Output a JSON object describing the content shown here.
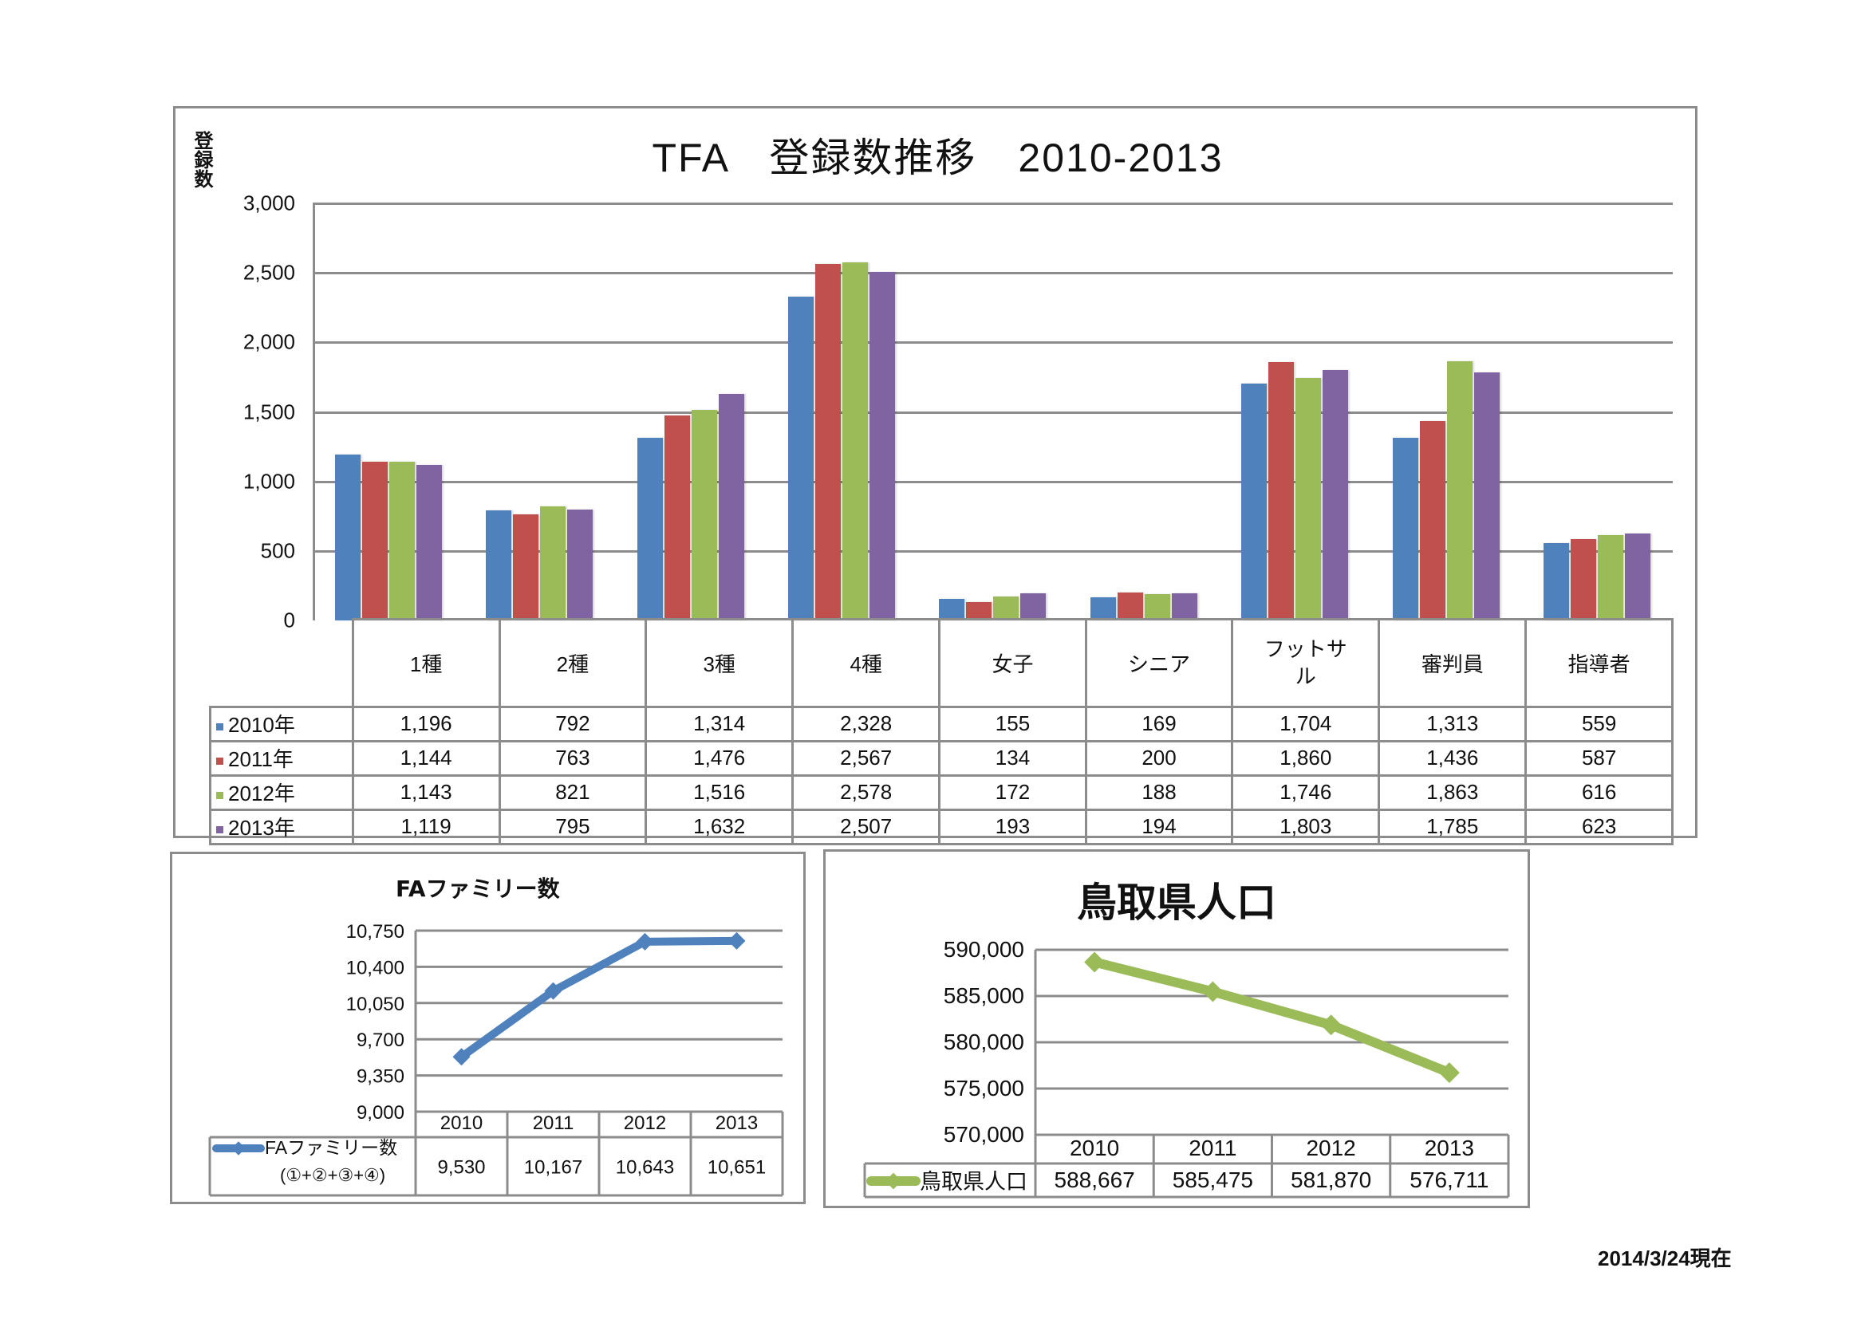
{
  "main_chart": {
    "title": "TFA　登録数推移　2010-2013",
    "ylabel": "登録数",
    "yticks": [
      "3,000",
      "2,500",
      "2,000",
      "1,500",
      "1,000",
      "500",
      "0"
    ],
    "categories": [
      "1種",
      "2種",
      "3種",
      "4種",
      "女子",
      "シニア",
      "フットサル",
      "審判員",
      "指導者"
    ],
    "header_futsal_line1": "フットサ",
    "header_futsal_line2": "ル",
    "series": [
      {
        "name": "2010年",
        "color": "#4f81bd",
        "display": [
          "1,196",
          "792",
          "1,314",
          "2,328",
          "155",
          "169",
          "1,704",
          "1,313",
          "559"
        ]
      },
      {
        "name": "2011年",
        "color": "#c0504d",
        "display": [
          "1,144",
          "763",
          "1,476",
          "2,567",
          "134",
          "200",
          "1,860",
          "1,436",
          "587"
        ]
      },
      {
        "name": "2012年",
        "color": "#9bbb59",
        "display": [
          "1,143",
          "821",
          "1,516",
          "2,578",
          "172",
          "188",
          "1,746",
          "1,863",
          "616"
        ]
      },
      {
        "name": "2013年",
        "color": "#8064a2",
        "display": [
          "1,119",
          "795",
          "1,632",
          "2,507",
          "193",
          "194",
          "1,803",
          "1,785",
          "623"
        ]
      }
    ]
  },
  "family_chart": {
    "title": "FAファミリー数",
    "yticks": [
      "10,750",
      "10,400",
      "10,050",
      "9,700",
      "9,350",
      "9,000"
    ],
    "years": [
      "2010",
      "2011",
      "2012",
      "2013"
    ],
    "legend_line1": "FAファミリー数",
    "legend_line2": "(①+②+③+④)",
    "display": [
      "9,530",
      "10,167",
      "10,643",
      "10,651"
    ],
    "color": "#4f81bd"
  },
  "population_chart": {
    "title": "鳥取県人口",
    "yticks": [
      "590,000",
      "585,000",
      "580,000",
      "575,000",
      "570,000"
    ],
    "years": [
      "2010",
      "2011",
      "2012",
      "2013"
    ],
    "legend": "鳥取県人口",
    "display": [
      "588,667",
      "585,475",
      "581,870",
      "576,711"
    ],
    "color": "#9bbb59"
  },
  "footer": {
    "date": "2014/3/24現在"
  },
  "chart_data": [
    {
      "type": "bar",
      "title": "TFA　登録数推移　2010-2013",
      "xlabel": "",
      "ylabel": "登録数",
      "ylim": [
        0,
        3000
      ],
      "grid": true,
      "legend_position": "data-table",
      "categories": [
        "1種",
        "2種",
        "3種",
        "4種",
        "女子",
        "シニア",
        "フットサル",
        "審判員",
        "指導者"
      ],
      "series": [
        {
          "name": "2010年",
          "values": [
            1196,
            792,
            1314,
            2328,
            155,
            169,
            1704,
            1313,
            559
          ]
        },
        {
          "name": "2011年",
          "values": [
            1144,
            763,
            1476,
            2567,
            134,
            200,
            1860,
            1436,
            587
          ]
        },
        {
          "name": "2012年",
          "values": [
            1143,
            821,
            1516,
            2578,
            172,
            188,
            1746,
            1863,
            616
          ]
        },
        {
          "name": "2013年",
          "values": [
            1119,
            795,
            1632,
            2507,
            193,
            194,
            1803,
            1785,
            623
          ]
        }
      ]
    },
    {
      "type": "line",
      "title": "FAファミリー数",
      "xlabel": "",
      "ylabel": "",
      "ylim": [
        9000,
        10750
      ],
      "grid": true,
      "legend_position": "data-table",
      "x": [
        "2010",
        "2011",
        "2012",
        "2013"
      ],
      "series": [
        {
          "name": "FAファミリー数 (①+②+③+④)",
          "values": [
            9530,
            10167,
            10643,
            10651
          ]
        }
      ]
    },
    {
      "type": "line",
      "title": "鳥取県人口",
      "xlabel": "",
      "ylabel": "",
      "ylim": [
        570000,
        590000
      ],
      "grid": true,
      "legend_position": "data-table",
      "x": [
        "2010",
        "2011",
        "2012",
        "2013"
      ],
      "series": [
        {
          "name": "鳥取県人口",
          "values": [
            588667,
            585475,
            581870,
            576711
          ]
        }
      ]
    }
  ]
}
